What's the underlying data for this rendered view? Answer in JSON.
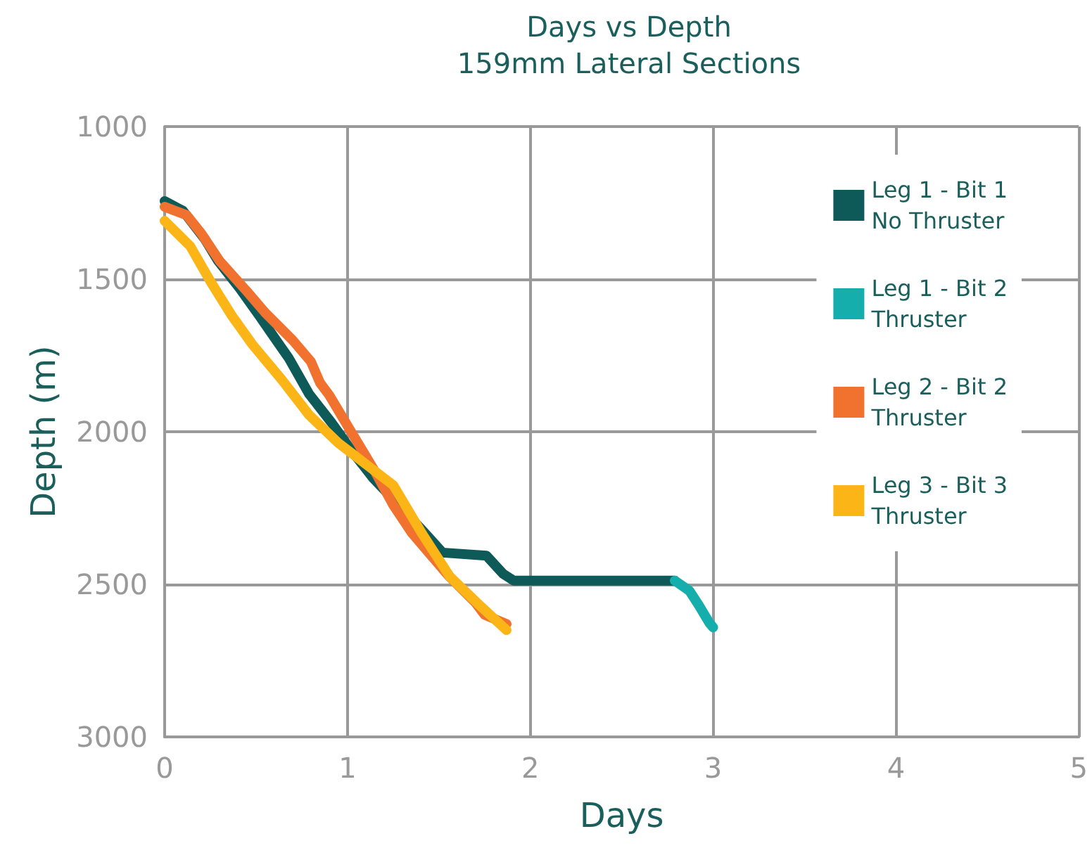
{
  "chart_data": {
    "type": "line",
    "title": "Days vs Depth",
    "subtitle": "159mm Lateral Sections",
    "xlabel": "Days",
    "ylabel": "Depth (m)",
    "xlim": [
      0,
      5
    ],
    "xticks": [
      0,
      1,
      2,
      3,
      4,
      5
    ],
    "ylim": [
      3000,
      1000
    ],
    "yticks": [
      1000,
      1500,
      2000,
      2500,
      3000
    ],
    "grid": true,
    "legend": "top right",
    "marker": "none",
    "line_style": "solid",
    "series": [
      {
        "name": "Leg 1 - Bit 1\nNo Thruster",
        "color": "#0e5a58",
        "x": [
          0,
          0.1,
          0.22,
          0.29,
          0.41,
          0.52,
          0.6,
          0.68,
          0.79,
          0.91,
          1.02,
          1.14,
          1.25,
          1.41,
          1.52,
          1.76,
          1.85,
          1.91,
          2.1,
          2.5,
          2.79
        ],
        "values": [
          1244,
          1276,
          1369,
          1438,
          1530,
          1622,
          1691,
          1760,
          1876,
          1968,
          2060,
          2152,
          2221,
          2323,
          2396,
          2406,
          2465,
          2488,
          2488,
          2488,
          2488
        ]
      },
      {
        "name": "Leg 1 - Bit 2\nThruster",
        "color": "#16aead",
        "x": [
          2.79,
          2.87,
          2.92,
          2.98,
          3.0
        ],
        "values": [
          2488,
          2521,
          2567,
          2627,
          2641
        ]
      },
      {
        "name": "Leg 2 - Bit 2\nThruster",
        "color": "#f0722e",
        "x": [
          0,
          0.12,
          0.2,
          0.3,
          0.45,
          0.55,
          0.7,
          0.8,
          0.85,
          0.9,
          1.0,
          1.1,
          1.15,
          1.25,
          1.35,
          1.45,
          1.55,
          1.7,
          1.75,
          1.87
        ],
        "values": [
          1263,
          1290,
          1350,
          1440,
          1540,
          1610,
          1700,
          1770,
          1840,
          1880,
          1980,
          2080,
          2130,
          2240,
          2330,
          2400,
          2470,
          2560,
          2600,
          2630
        ]
      },
      {
        "name": "Leg 3 - Bit 3\nThruster",
        "color": "#fbb516",
        "x": [
          0,
          0.14,
          0.25,
          0.37,
          0.48,
          0.64,
          0.79,
          0.95,
          1.1,
          1.25,
          1.41,
          1.56,
          1.72,
          1.87
        ],
        "values": [
          1309,
          1392,
          1507,
          1622,
          1714,
          1829,
          1945,
          2037,
          2106,
          2175,
          2336,
          2475,
          2567,
          2650
        ]
      }
    ]
  }
}
